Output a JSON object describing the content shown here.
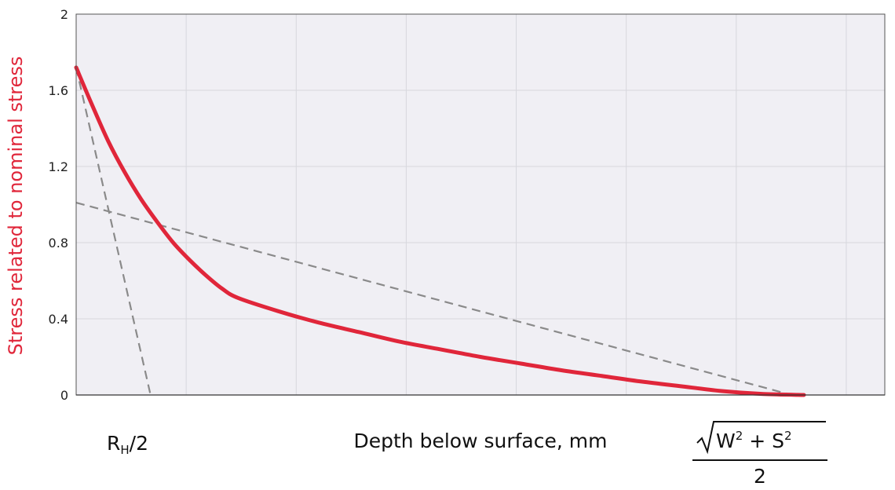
{
  "chart_data": {
    "type": "line",
    "title": "",
    "xlabel": "Depth below surface, mm",
    "ylabel": "Stress related to nominal stress",
    "ylim": [
      0,
      2
    ],
    "yticks": [
      "0",
      "0.4",
      "0.8",
      "1.2",
      "1.6",
      "2"
    ],
    "xlim": [
      0,
      1
    ],
    "x_ticks_shown": false,
    "grid": true,
    "colors": {
      "curve": "#e0263a",
      "tangent": "#8a8a8a",
      "plot_bg": "#f0eff4",
      "grid": "#d7d7dd",
      "ylabel": "#e0263a"
    },
    "series": [
      {
        "style": "solid",
        "x": [
          0.0,
          0.02,
          0.04,
          0.06,
          0.08,
          0.1,
          0.12,
          0.14,
          0.16,
          0.18,
          0.2,
          0.25,
          0.3,
          0.35,
          0.4,
          0.45,
          0.5,
          0.55,
          0.6,
          0.65,
          0.7,
          0.75,
          0.8,
          0.85,
          0.9
        ],
        "y": [
          1.72,
          1.52,
          1.33,
          1.17,
          1.03,
          0.91,
          0.8,
          0.71,
          0.63,
          0.56,
          0.51,
          0.44,
          0.38,
          0.33,
          0.28,
          0.24,
          0.2,
          0.165,
          0.13,
          0.1,
          0.07,
          0.045,
          0.02,
          0.005,
          0.0
        ]
      },
      {
        "style": "dashed",
        "x": [
          0.0,
          0.092
        ],
        "y": [
          1.72,
          0.0
        ]
      },
      {
        "style": "dashed",
        "x": [
          0.0,
          0.885
        ],
        "y": [
          1.01,
          0.0
        ]
      }
    ],
    "annotations": {
      "rh": {
        "main": "R",
        "sub": "H",
        "rest": "/2"
      },
      "formula": {
        "w": "W",
        "plus": " + ",
        "s": "S",
        "exp": "2",
        "denominator": "2"
      }
    }
  }
}
